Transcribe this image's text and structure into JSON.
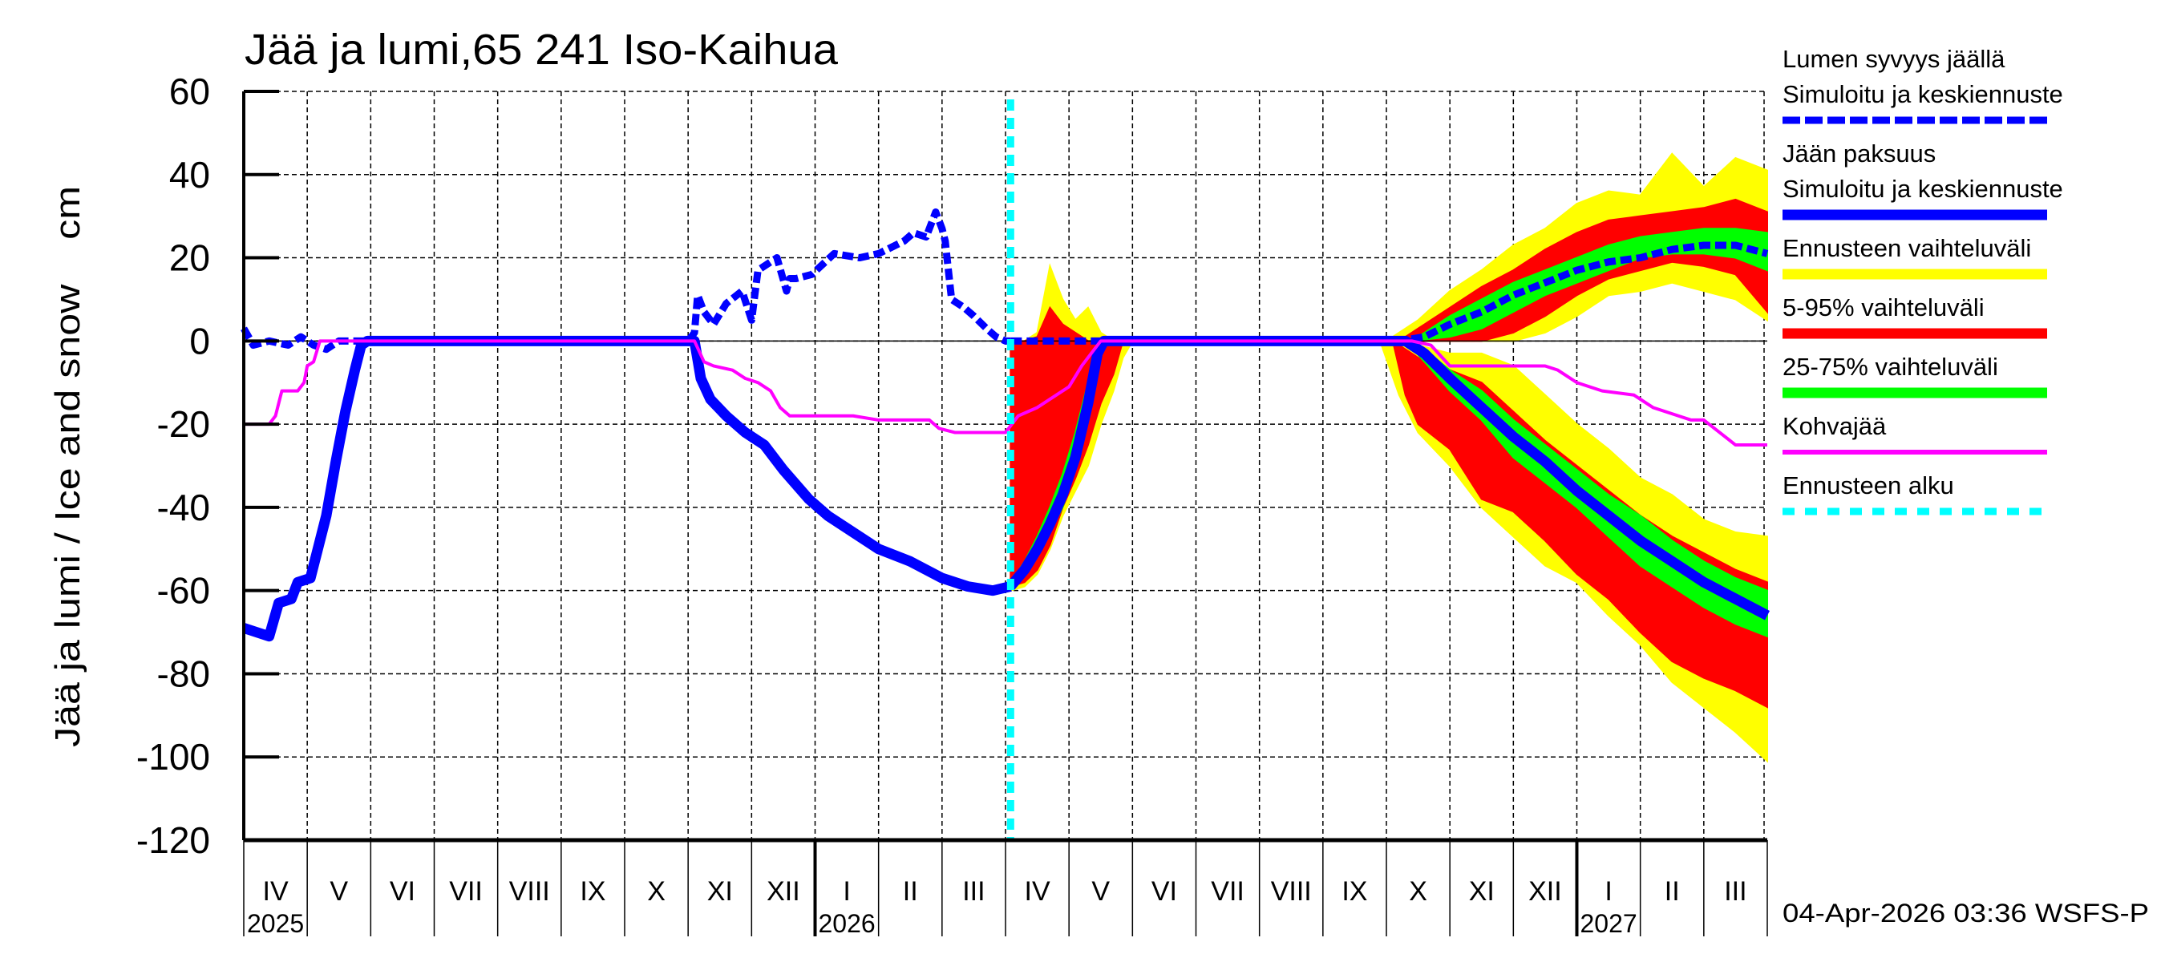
{
  "chart_data": {
    "type": "area",
    "title": "Jää ja lumi,65 241 Iso-Kaihua",
    "ylabel": "Jää ja lumi / Ice and snow    cm",
    "xlabel": "",
    "ylim": [
      -120,
      60
    ],
    "yticks": [
      60,
      40,
      20,
      0,
      -20,
      -40,
      -60,
      -80,
      -100,
      -120
    ],
    "grid": true,
    "x_unit": "months since start of April 2025",
    "xlim": [
      0,
      24
    ],
    "month_ticks": [
      {
        "label": "IV",
        "start": 0
      },
      {
        "label": "V",
        "start": 1
      },
      {
        "label": "VI",
        "start": 2
      },
      {
        "label": "VII",
        "start": 3
      },
      {
        "label": "VIII",
        "start": 4
      },
      {
        "label": "IX",
        "start": 5
      },
      {
        "label": "X",
        "start": 6
      },
      {
        "label": "XI",
        "start": 7
      },
      {
        "label": "XII",
        "start": 8
      },
      {
        "label": "I",
        "start": 9
      },
      {
        "label": "II",
        "start": 10
      },
      {
        "label": "III",
        "start": 11
      },
      {
        "label": "IV",
        "start": 12
      },
      {
        "label": "V",
        "start": 13
      },
      {
        "label": "VI",
        "start": 14
      },
      {
        "label": "VII",
        "start": 15
      },
      {
        "label": "VIII",
        "start": 16
      },
      {
        "label": "IX",
        "start": 17
      },
      {
        "label": "X",
        "start": 18
      },
      {
        "label": "XI",
        "start": 19
      },
      {
        "label": "XII",
        "start": 20
      },
      {
        "label": "I",
        "start": 21
      },
      {
        "label": "II",
        "start": 22
      },
      {
        "label": "III",
        "start": 23
      }
    ],
    "year_labels": [
      {
        "label": "2025",
        "at": 0
      },
      {
        "label": "2026",
        "at": 9
      },
      {
        "label": "2027",
        "at": 21
      }
    ],
    "forecast_start": 12.08,
    "legend_position": "right",
    "legend": [
      {
        "label": "Lumen syvyys jäällä",
        "label2": "Simuloitu ja keskiennuste",
        "color": "#0000ff",
        "style": "dashed"
      },
      {
        "label": "Jään paksuus",
        "label2": "Simuloitu ja keskiennuste",
        "color": "#0000ff",
        "style": "solid"
      },
      {
        "label": "Ennusteen vaihteluväli",
        "color": "#ffff00",
        "style": "band"
      },
      {
        "label": "5-95% vaihteluväli",
        "color": "#ff0000",
        "style": "band"
      },
      {
        "label": "25-75% vaihteluväli",
        "color": "#00ff00",
        "style": "band"
      },
      {
        "label": "Kohvajää",
        "color": "#ff00ff",
        "style": "thin"
      },
      {
        "label": "Ennusteen alku",
        "color": "#00ffff",
        "style": "dotted"
      }
    ],
    "series": [
      {
        "name": "Lumen syvyys jäällä (simuloitu)",
        "color": "#0000ff",
        "style": "dashed",
        "x": [
          0,
          0.15,
          0.4,
          0.7,
          0.9,
          1.1,
          1.3,
          1.5,
          1.6,
          4.5,
          7.0,
          7.1,
          7.15,
          7.25,
          7.4,
          7.6,
          7.85,
          8.0,
          8.1,
          8.4,
          8.55,
          8.6,
          8.7,
          8.95,
          9.3,
          9.7,
          10.0,
          10.4,
          10.55,
          10.75,
          10.9,
          11.0,
          11.05,
          11.15,
          11.35,
          11.5,
          11.7,
          11.85,
          12.0,
          12.08
        ],
        "y": [
          3,
          -1,
          0,
          -1,
          1,
          -1,
          -2,
          0,
          0,
          0,
          0,
          2,
          11,
          7,
          4,
          9,
          12,
          5,
          17,
          20,
          12,
          15,
          15,
          16,
          21,
          20,
          21,
          24,
          26,
          25,
          31,
          27,
          24,
          10,
          8,
          6,
          3,
          1,
          0,
          0
        ]
      },
      {
        "name": "Lumen syvyys jäällä (keskiennuste)",
        "color": "#0000ff",
        "style": "dashed",
        "x": [
          12.08,
          13.0,
          14.0,
          18.2,
          18.6,
          19.0,
          19.5,
          20.0,
          20.5,
          21.0,
          21.5,
          22.0,
          22.5,
          23.0,
          23.5,
          24.0
        ],
        "y": [
          0,
          0,
          0,
          0,
          1,
          4,
          7,
          11,
          14,
          17,
          19,
          20,
          22,
          23,
          23,
          21
        ]
      },
      {
        "name": "Jään paksuus (simuloitu)",
        "color": "#0000ff",
        "style": "solid",
        "x": [
          0,
          0.4,
          0.55,
          0.75,
          0.85,
          1.05,
          1.15,
          1.3,
          1.45,
          1.6,
          1.75,
          1.85,
          1.95,
          2.0,
          7.1,
          7.2,
          7.35,
          7.6,
          7.9,
          8.2,
          8.5,
          8.9,
          9.2,
          9.6,
          10.0,
          10.5,
          11.0,
          11.4,
          11.8,
          12.08
        ],
        "y": [
          -69,
          -71,
          -63,
          -62,
          -58,
          -57,
          -51,
          -42,
          -29,
          -17,
          -7,
          -1,
          0,
          0,
          0,
          -9,
          -14,
          -18,
          -22,
          -25,
          -31,
          -38,
          -42,
          -46,
          -50,
          -53,
          -57,
          -59,
          -60,
          -59
        ]
      },
      {
        "name": "Jään paksuus (keskiennuste)",
        "color": "#0000ff",
        "style": "solid",
        "x": [
          12.08,
          12.3,
          12.5,
          12.7,
          12.9,
          13.1,
          13.3,
          13.45,
          13.55,
          14.0,
          18.3,
          18.6,
          19.0,
          19.5,
          20.0,
          20.5,
          21.0,
          21.5,
          22.0,
          22.5,
          23.0,
          23.5,
          24.0
        ],
        "y": [
          -59,
          -55,
          -50,
          -44,
          -37,
          -28,
          -15,
          -3,
          0,
          0,
          0,
          -3,
          -9,
          -16,
          -23,
          -29,
          -36,
          -42,
          -48,
          -53,
          -58,
          -62,
          -66
        ]
      },
      {
        "name": "Kohvajää",
        "color": "#ff00ff",
        "style": "thin",
        "x": [
          0,
          0.4,
          0.5,
          0.6,
          0.85,
          0.95,
          1.0,
          1.1,
          1.2,
          7.1,
          7.25,
          7.4,
          7.7,
          7.9,
          8.1,
          8.3,
          8.45,
          8.6,
          8.8,
          9.6,
          10.0,
          10.8,
          10.95,
          11.2,
          11.4,
          12.0,
          12.2,
          12.5,
          12.7,
          13.0,
          13.2,
          13.5,
          13.9,
          18.4,
          18.7,
          19.0,
          19.2,
          20.5,
          20.7,
          21.0,
          21.4,
          21.9,
          22.2,
          22.6,
          22.8,
          23.0,
          23.5,
          24.0
        ],
        "y": [
          -20,
          -20,
          -18,
          -12,
          -12,
          -10,
          -6,
          -5,
          0,
          0,
          -5,
          -6,
          -7,
          -9,
          -10,
          -12,
          -16,
          -18,
          -18,
          -18,
          -19,
          -19,
          -21,
          -22,
          -22,
          -22,
          -18,
          -16,
          -14,
          -11,
          -6,
          0,
          0,
          0,
          -1,
          -6,
          -6,
          -6,
          -7,
          -10,
          -12,
          -13,
          -16,
          -18,
          -19,
          -19,
          -25,
          -25
        ]
      }
    ],
    "bands": [
      {
        "name": "Ennusteen vaihteluväli (kevät 2026)",
        "color": "#ffff00",
        "x": [
          12.08,
          12.3,
          12.5,
          12.7,
          12.9,
          13.1,
          13.3,
          13.5,
          13.7,
          13.85,
          14.0
        ],
        "upper": [
          0,
          0,
          2,
          18,
          10,
          5,
          8,
          2,
          0,
          0,
          0
        ],
        "lower": [
          -60,
          -59,
          -56,
          -50,
          -42,
          -36,
          -30,
          -20,
          -12,
          -4,
          0
        ]
      },
      {
        "name": "5-95% vaihteluväli (kevät 2026)",
        "color": "#ff0000",
        "x": [
          12.08,
          12.3,
          12.5,
          12.7,
          12.9,
          13.1,
          13.3,
          13.5,
          13.7,
          13.85
        ],
        "upper": [
          0,
          0,
          1,
          8,
          4,
          2,
          0,
          0,
          0,
          0
        ],
        "lower": [
          -59,
          -58,
          -55,
          -49,
          -40,
          -33,
          -25,
          -15,
          -8,
          0
        ]
      },
      {
        "name": "25-75% vaihteluväli (kevät 2026)",
        "color": "#00ff00",
        "x": [
          12.08,
          12.3,
          12.5,
          12.7,
          12.9,
          13.1,
          13.3,
          13.5,
          13.6
        ],
        "upper": [
          -58,
          -53,
          -47,
          -40,
          -32,
          -22,
          -10,
          0,
          0
        ],
        "lower": [
          -59,
          -56,
          -51,
          -46,
          -40,
          -31,
          -18,
          -4,
          0
        ]
      },
      {
        "name": "Ennusteen vaihteluväli (lumi 2026-27)",
        "color": "#ffff00",
        "x": [
          18.0,
          18.5,
          19.0,
          19.5,
          20.0,
          20.5,
          21.0,
          21.5,
          22.0,
          22.5,
          23.0,
          23.5,
          24.0
        ],
        "upper": [
          0,
          5,
          12,
          17,
          23,
          27,
          33,
          36,
          35,
          45,
          37,
          44,
          41
        ],
        "lower": [
          0,
          0,
          0,
          0,
          0,
          2,
          6,
          11,
          12,
          14,
          12,
          10,
          5
        ]
      },
      {
        "name": "5-95% vaihteluväli (lumi 2026-27)",
        "color": "#ff0000",
        "x": [
          18.2,
          18.5,
          19.0,
          19.5,
          20.0,
          20.5,
          21.0,
          21.5,
          22.0,
          22.5,
          23.0,
          23.5,
          24.0
        ],
        "upper": [
          0,
          3,
          8,
          13,
          17,
          22,
          26,
          29,
          30,
          31,
          32,
          34,
          31
        ],
        "lower": [
          0,
          0,
          0,
          0,
          2,
          6,
          11,
          15,
          17,
          19,
          18,
          16,
          7
        ]
      },
      {
        "name": "25-75% vaihteluväli (lumi 2026-27)",
        "color": "#00ff00",
        "x": [
          18.4,
          19.0,
          19.5,
          20.0,
          20.5,
          21.0,
          21.5,
          22.0,
          22.5,
          23.0,
          23.5,
          24.0
        ],
        "upper": [
          0,
          6,
          10,
          14,
          17,
          20,
          23,
          25,
          26,
          27,
          27,
          26
        ],
        "lower": [
          0,
          1,
          3,
          7,
          11,
          14,
          17,
          20,
          21,
          21,
          20,
          17
        ]
      },
      {
        "name": "Ennusteen vaihteluväli (jää 2026-27)",
        "color": "#ffff00",
        "x": [
          17.9,
          18.2,
          18.5,
          19.0,
          19.5,
          20.0,
          20.5,
          21.0,
          21.5,
          22.0,
          22.5,
          23.0,
          23.5,
          24.0
        ],
        "upper": [
          0,
          0,
          -1,
          -3,
          -3,
          -6,
          -13,
          -20,
          -26,
          -33,
          -37,
          -43,
          -46,
          -47
        ],
        "lower": [
          0,
          -13,
          -22,
          -30,
          -40,
          -47,
          -54,
          -58,
          -66,
          -73,
          -82,
          -88,
          -94,
          -101
        ]
      },
      {
        "name": "5-95% vaihteluväli (jää 2026-27)",
        "color": "#ff0000",
        "x": [
          18.1,
          18.3,
          18.5,
          19.0,
          19.5,
          20.0,
          20.5,
          21.0,
          21.5,
          22.0,
          22.5,
          23.0,
          23.5,
          24.0
        ],
        "upper": [
          0,
          -2,
          -4,
          -7,
          -10,
          -17,
          -24,
          -30,
          -36,
          -42,
          -47,
          -51,
          -55,
          -58
        ],
        "lower": [
          0,
          -13,
          -20,
          -26,
          -38,
          -41,
          -48,
          -56,
          -62,
          -70,
          -77,
          -81,
          -84,
          -88
        ]
      },
      {
        "name": "25-75% vaihteluväli (jää 2026-27)",
        "color": "#00ff00",
        "x": [
          18.3,
          18.6,
          19.0,
          19.5,
          20.0,
          20.5,
          21.0,
          21.5,
          22.0,
          22.5,
          23.0,
          23.5,
          24.0
        ],
        "upper": [
          0,
          -2,
          -7,
          -12,
          -19,
          -25,
          -31,
          -37,
          -42,
          -48,
          -53,
          -57,
          -60
        ],
        "lower": [
          0,
          -5,
          -12,
          -19,
          -28,
          -34,
          -40,
          -47,
          -54,
          -59,
          -64,
          -68,
          -71
        ]
      }
    ]
  },
  "footer": {
    "timestamp": "04-Apr-2026 03:36 WSFS-P"
  }
}
